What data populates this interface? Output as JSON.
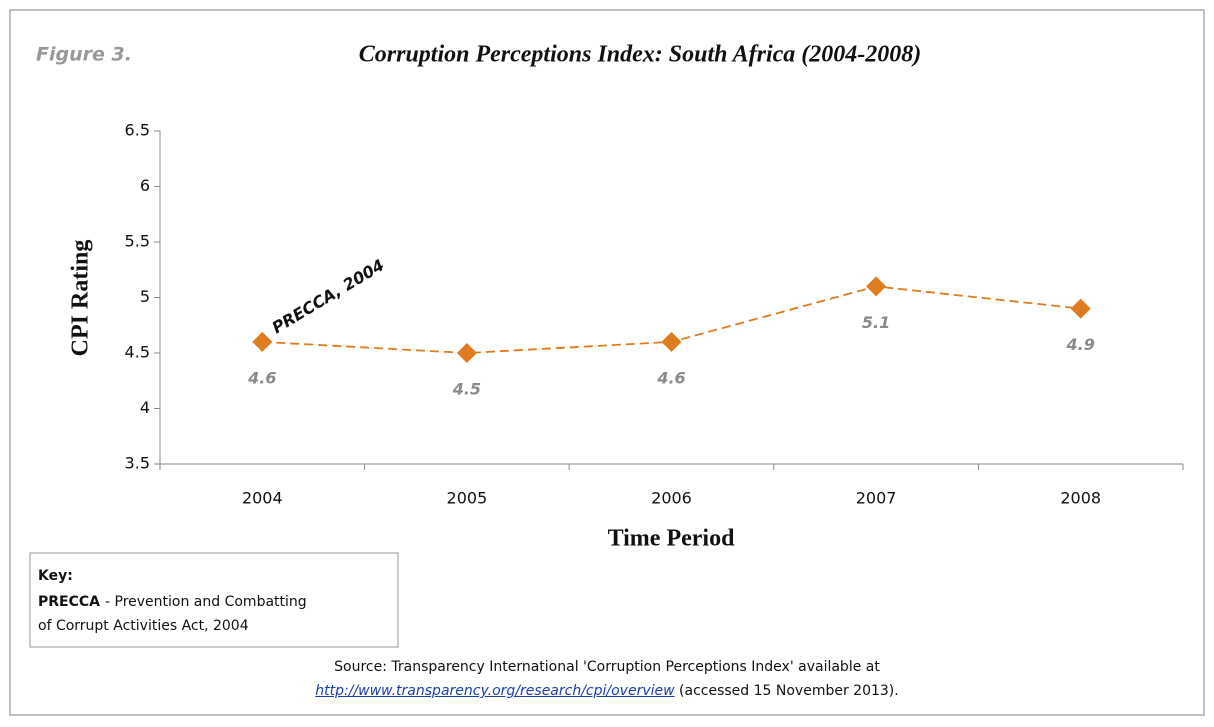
{
  "figure_label": "Figure 3.",
  "chart_data": {
    "type": "line",
    "title": "Corruption Perceptions Index: South Africa (2004-2008)",
    "x_label": "Time Period",
    "y_label": "CPI Rating",
    "categories": [
      "2004",
      "2005",
      "2006",
      "2007",
      "2008"
    ],
    "series": [
      {
        "name": "CPI Rating",
        "color": "#e07b20",
        "values": [
          4.6,
          4.5,
          4.6,
          5.1,
          4.9
        ]
      }
    ],
    "ylim": [
      3.5,
      6.5
    ],
    "yticks": [
      3.5,
      4,
      4.5,
      5,
      5.5,
      6,
      6.5
    ],
    "grid": false,
    "annotation": "PRECCA, 2004"
  },
  "key": {
    "title": "Key:",
    "term": "PRECCA",
    "definition": [
      "- Prevention and Combatting",
      "of Corrupt Activities Act, 2004"
    ]
  },
  "source": {
    "text": "Source: Transparency International 'Corruption Perceptions Index' available at",
    "link": "http://www.transparency.org/research/cpi/overview",
    "note": "(accessed 15 November 2013)."
  }
}
